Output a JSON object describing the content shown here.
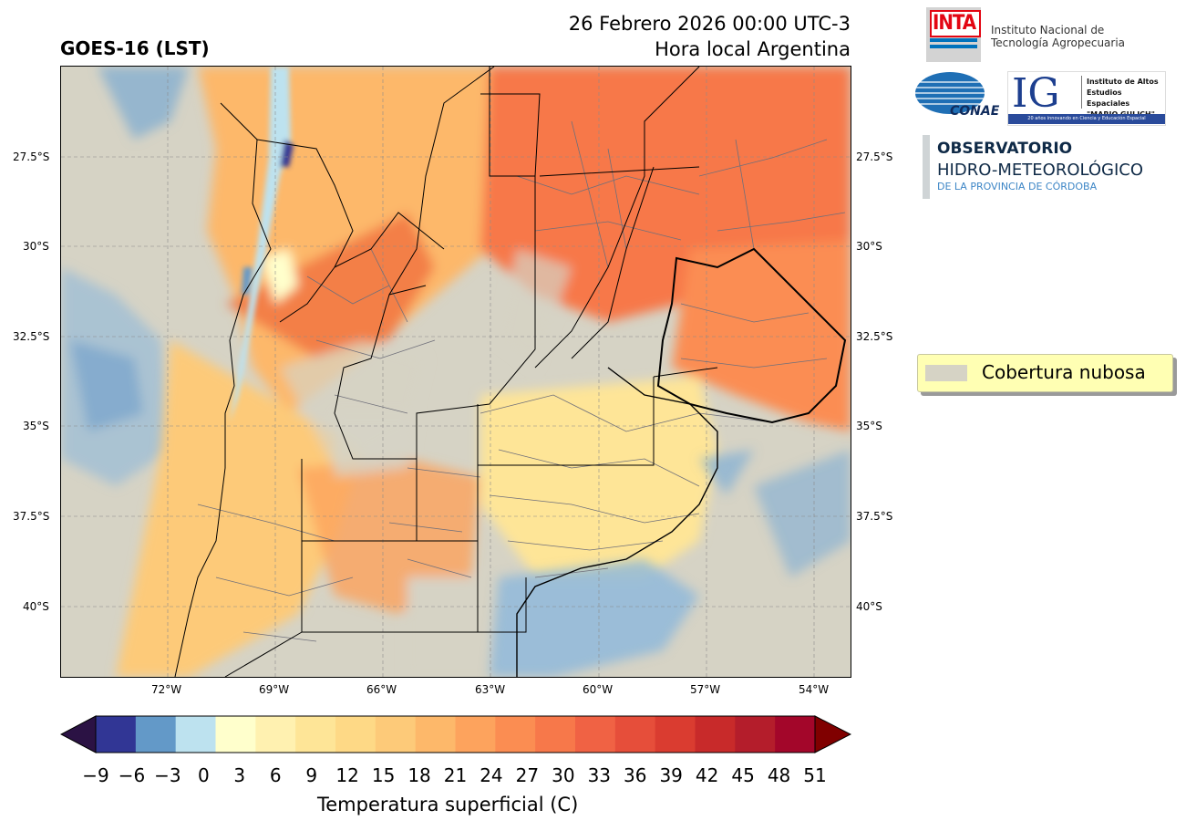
{
  "title": "GOES-16 (LST)",
  "date_line1": "26 Febrero 2026 00:00 UTC-3",
  "date_line2": "Hora local Argentina",
  "map": {
    "lat_labels": [
      "27.5°S",
      "30°S",
      "32.5°S",
      "35°S",
      "37.5°S",
      "40°S"
    ],
    "lon_labels": [
      "72°W",
      "69°W",
      "66°W",
      "63°W",
      "60°W",
      "57°W",
      "54°W"
    ]
  },
  "colorbar": {
    "ticks": [
      "−9",
      "−6",
      "−3",
      "0",
      "3",
      "6",
      "9",
      "12",
      "15",
      "18",
      "21",
      "24",
      "27",
      "30",
      "33",
      "36",
      "39",
      "42",
      "45",
      "48",
      "51"
    ],
    "colors": [
      "#313695",
      "#6399c8",
      "#bde2ef",
      "#ffffcc",
      "#fff1b0",
      "#fee597",
      "#fed986",
      "#fdca79",
      "#fdb86a",
      "#fda35d",
      "#fb8d52",
      "#f7784a",
      "#f06244",
      "#e64e3a",
      "#da3c30",
      "#c82a2a",
      "#b41d2b",
      "#a3062a"
    ],
    "min_color": "#2b1244",
    "max_color": "#800000",
    "label": "Temperatura superficial (C)"
  },
  "legend": {
    "label": "Cobertura nubosa",
    "color": "#d6d3c5"
  },
  "logos": {
    "inta": {
      "mark": "INTA",
      "name_line1": "Instituto Nacional de",
      "name_line2": "Tecnología Agropecuaria"
    },
    "conae": {
      "mark": "CONAE"
    },
    "ig": {
      "mark": "IG",
      "line1": "Instituto de Altos",
      "line2": "Estudios Espaciales",
      "line3": "\"MARIO GULICH\"",
      "tagline": "20 años innovando en Ciencia y Educación Espacial"
    },
    "observatorio": {
      "title": "OBSERVATORIO",
      "subtitle": "HIDRO-METEOROLÓGICO",
      "region": "DE LA PROVINCIA DE CÓRDOBA"
    }
  }
}
